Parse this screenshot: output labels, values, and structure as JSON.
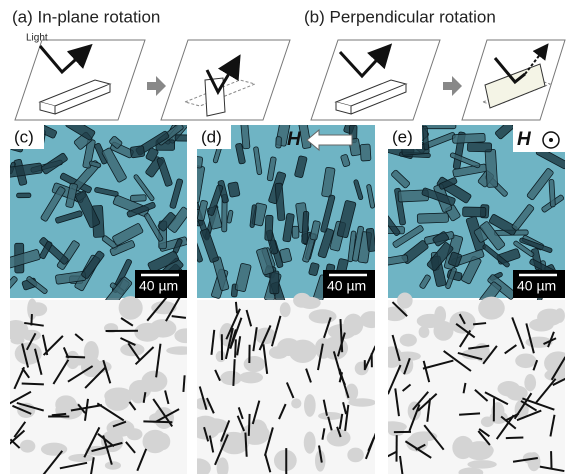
{
  "header": {
    "a": "(a) In-plane rotation",
    "b": "(b) Perpendicular rotation"
  },
  "diagram": {
    "light": "Light"
  },
  "panels": [
    {
      "label": "(c)",
      "scale_bar": "40 µm"
    },
    {
      "label": "(d)",
      "field": "H",
      "scale_bar": "40 µm"
    },
    {
      "label": "(e)",
      "field": "H",
      "scale_bar": "40 µm"
    }
  ]
}
